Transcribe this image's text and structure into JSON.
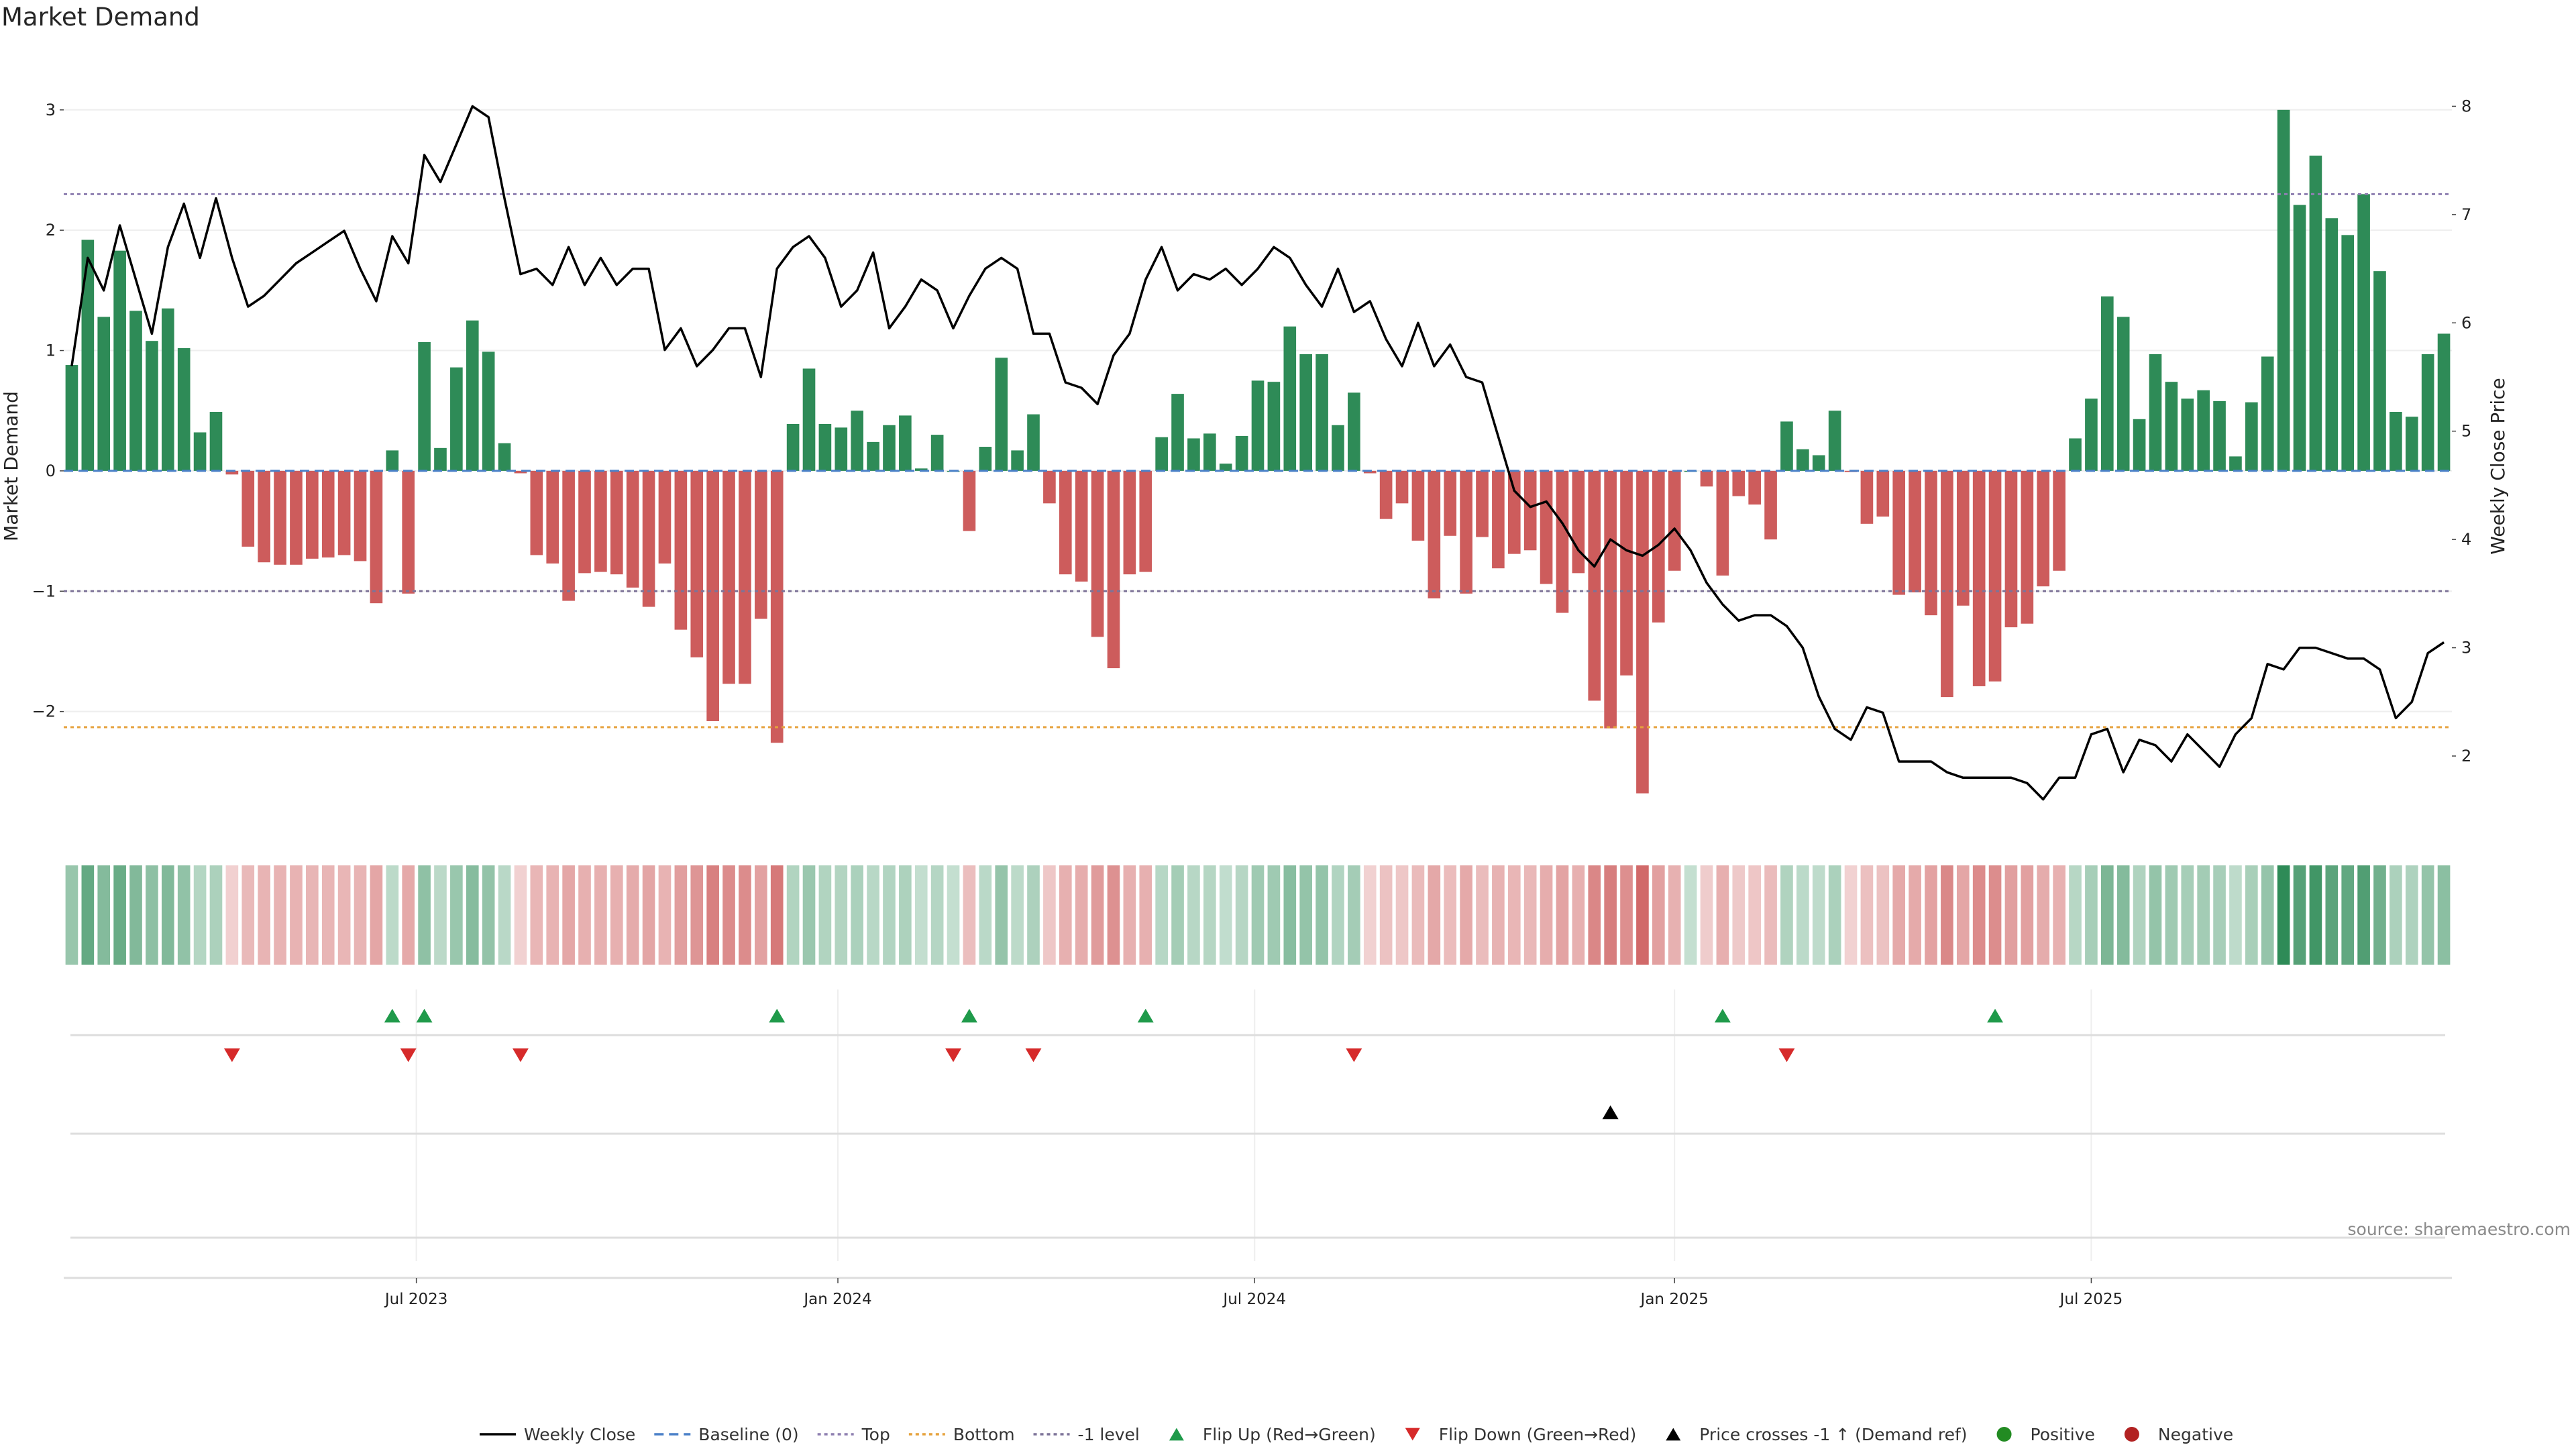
{
  "title": "Market Demand",
  "source": "source: sharemaestro.com",
  "chart_data": {
    "type": "bar",
    "title": "Market Demand",
    "ylabel": "Market Demand",
    "y2label": "Weekly Close Price",
    "ylim": [
      -3.0,
      3.3
    ],
    "y2lim": [
      1.3,
      8.3
    ],
    "yticks": [
      "3",
      "2",
      "1",
      "0",
      "−1",
      "−2"
    ],
    "yticks_values": [
      3,
      2,
      1,
      0,
      -1,
      -2
    ],
    "y2ticks": [
      "8",
      "7",
      "6",
      "5",
      "4",
      "3",
      "2"
    ],
    "y2ticks_values": [
      8,
      7,
      6,
      5,
      4,
      3,
      2
    ],
    "reference_lines": {
      "top": 2.3,
      "bottom": -2.13,
      "minus_one_level": -1.0,
      "baseline": 0
    },
    "xtick_labels": [
      "Jul 2023",
      "Jan 2024",
      "Jul 2024",
      "Jan 2025",
      "Jul 2025"
    ],
    "xtick_index": [
      21.5,
      47.8,
      73.8,
      100,
      126
    ],
    "demand": [
      0.88,
      1.92,
      1.28,
      1.83,
      1.33,
      1.08,
      1.35,
      1.02,
      0.32,
      0.49,
      -0.03,
      -0.63,
      -0.76,
      -0.78,
      -0.78,
      -0.73,
      -0.72,
      -0.7,
      -0.75,
      -1.1,
      0.17,
      -1.02,
      1.07,
      0.19,
      0.86,
      1.25,
      0.99,
      0.23,
      -0.02,
      -0.7,
      -0.77,
      -1.08,
      -0.85,
      -0.84,
      -0.86,
      -0.97,
      -1.13,
      -0.77,
      -1.32,
      -1.55,
      -2.08,
      -1.77,
      -1.77,
      -1.23,
      -2.26,
      0.39,
      0.85,
      0.39,
      0.36,
      0.5,
      0.24,
      0.38,
      0.46,
      0.02,
      0.3,
      0.0,
      -0.5,
      0.2,
      0.94,
      0.17,
      0.47,
      -0.27,
      -0.86,
      -0.92,
      -1.38,
      -1.64,
      -0.86,
      -0.84,
      0.28,
      0.64,
      0.27,
      0.31,
      0.06,
      0.29,
      0.75,
      0.74,
      1.2,
      0.97,
      0.97,
      0.38,
      0.65,
      -0.02,
      -0.4,
      -0.27,
      -0.58,
      -1.06,
      -0.54,
      -1.02,
      -0.55,
      -0.81,
      -0.69,
      -0.66,
      -0.94,
      -1.18,
      -0.85,
      -1.91,
      -2.14,
      -1.7,
      -2.68,
      -1.26,
      -0.83,
      0.0,
      -0.13,
      -0.87,
      -0.21,
      -0.28,
      -0.57,
      0.41,
      0.18,
      0.13,
      0.5,
      -0.01,
      -0.44,
      -0.38,
      -1.03,
      -1.01,
      -1.2,
      -1.88,
      -1.12,
      -1.79,
      -1.75,
      -1.3,
      -1.27,
      -0.96,
      -0.83,
      0.27,
      0.6,
      1.45,
      1.28,
      0.43,
      0.97,
      0.74,
      0.6,
      0.67,
      0.58,
      0.12,
      0.57,
      0.95,
      3.0,
      2.21,
      2.62,
      2.1,
      1.96,
      2.3,
      1.66,
      0.49,
      0.45,
      0.97,
      1.14
    ],
    "weekly_close": [
      5.6,
      6.6,
      6.3,
      6.9,
      6.4,
      5.9,
      6.7,
      7.1,
      6.6,
      7.15,
      6.6,
      6.15,
      6.25,
      6.4,
      6.55,
      6.65,
      6.75,
      6.85,
      6.5,
      6.2,
      6.8,
      6.55,
      7.55,
      7.3,
      7.65,
      8.0,
      7.9,
      7.15,
      6.45,
      6.5,
      6.35,
      6.7,
      6.35,
      6.6,
      6.35,
      6.5,
      6.5,
      5.75,
      5.95,
      5.6,
      5.75,
      5.95,
      5.95,
      5.5,
      6.5,
      6.7,
      6.8,
      6.6,
      6.15,
      6.3,
      6.65,
      5.95,
      6.15,
      6.4,
      6.3,
      5.95,
      6.25,
      6.5,
      6.6,
      6.5,
      5.9,
      5.9,
      5.45,
      5.4,
      5.25,
      5.7,
      5.9,
      6.4,
      6.7,
      6.3,
      6.45,
      6.4,
      6.5,
      6.35,
      6.5,
      6.7,
      6.6,
      6.35,
      6.15,
      6.5,
      6.1,
      6.2,
      5.85,
      5.6,
      6.0,
      5.6,
      5.8,
      5.5,
      5.45,
      4.95,
      4.45,
      4.3,
      4.35,
      4.15,
      3.9,
      3.75,
      4.0,
      3.9,
      3.85,
      3.95,
      4.1,
      3.9,
      3.6,
      3.4,
      3.25,
      3.3,
      3.3,
      3.2,
      3.0,
      2.55,
      2.25,
      2.15,
      2.45,
      2.4,
      1.95,
      1.95,
      1.95,
      1.85,
      1.8,
      1.8,
      1.8,
      1.8,
      1.75,
      1.6,
      1.8,
      1.8,
      2.2,
      2.25,
      1.85,
      2.15,
      2.1,
      1.95,
      2.2,
      2.05,
      1.9,
      2.2,
      2.35,
      2.85,
      2.8,
      3.0,
      3.0,
      2.95,
      2.9,
      2.9,
      2.8,
      2.35,
      2.5,
      2.95,
      3.05
    ],
    "flip_up_index": [
      20,
      22,
      44,
      56,
      67,
      103,
      120
    ],
    "flip_down_index": [
      10,
      21,
      28,
      55,
      60,
      80,
      107
    ],
    "price_cross_index": [
      96
    ],
    "colors": {
      "positive": "#2e8b57",
      "negative": "#cd5c5c",
      "price": "#000000",
      "baseline": "#4a80c8",
      "top": "#8d7fb0",
      "bottom": "#e6a23c",
      "minus_one": "#7d7398",
      "flip_up": "#1f9a4a",
      "flip_down": "#d62a2a",
      "legend_positive": "#228b22",
      "legend_negative": "#b22222"
    },
    "legend": [
      {
        "label": "Weekly Close",
        "kind": "line-solid",
        "color": "#000000"
      },
      {
        "label": "Baseline (0)",
        "kind": "line-dash",
        "color": "#4a80c8"
      },
      {
        "label": "Top",
        "kind": "line-dot",
        "color": "#8d7fb0"
      },
      {
        "label": "Bottom",
        "kind": "line-dot",
        "color": "#e6a23c"
      },
      {
        "label": "-1 level",
        "kind": "line-dot",
        "color": "#7d7398"
      },
      {
        "label": "Flip Up (Red→Green)",
        "kind": "tri-up",
        "color": "#1f9a4a"
      },
      {
        "label": "Flip Down (Green→Red)",
        "kind": "tri-down",
        "color": "#d62a2a"
      },
      {
        "label": "Price crosses -1 ↑ (Demand ref)",
        "kind": "tri-up",
        "color": "#000000"
      },
      {
        "label": "Positive",
        "kind": "dot",
        "color": "#228b22"
      },
      {
        "label": "Negative",
        "kind": "dot",
        "color": "#b22222"
      }
    ]
  }
}
